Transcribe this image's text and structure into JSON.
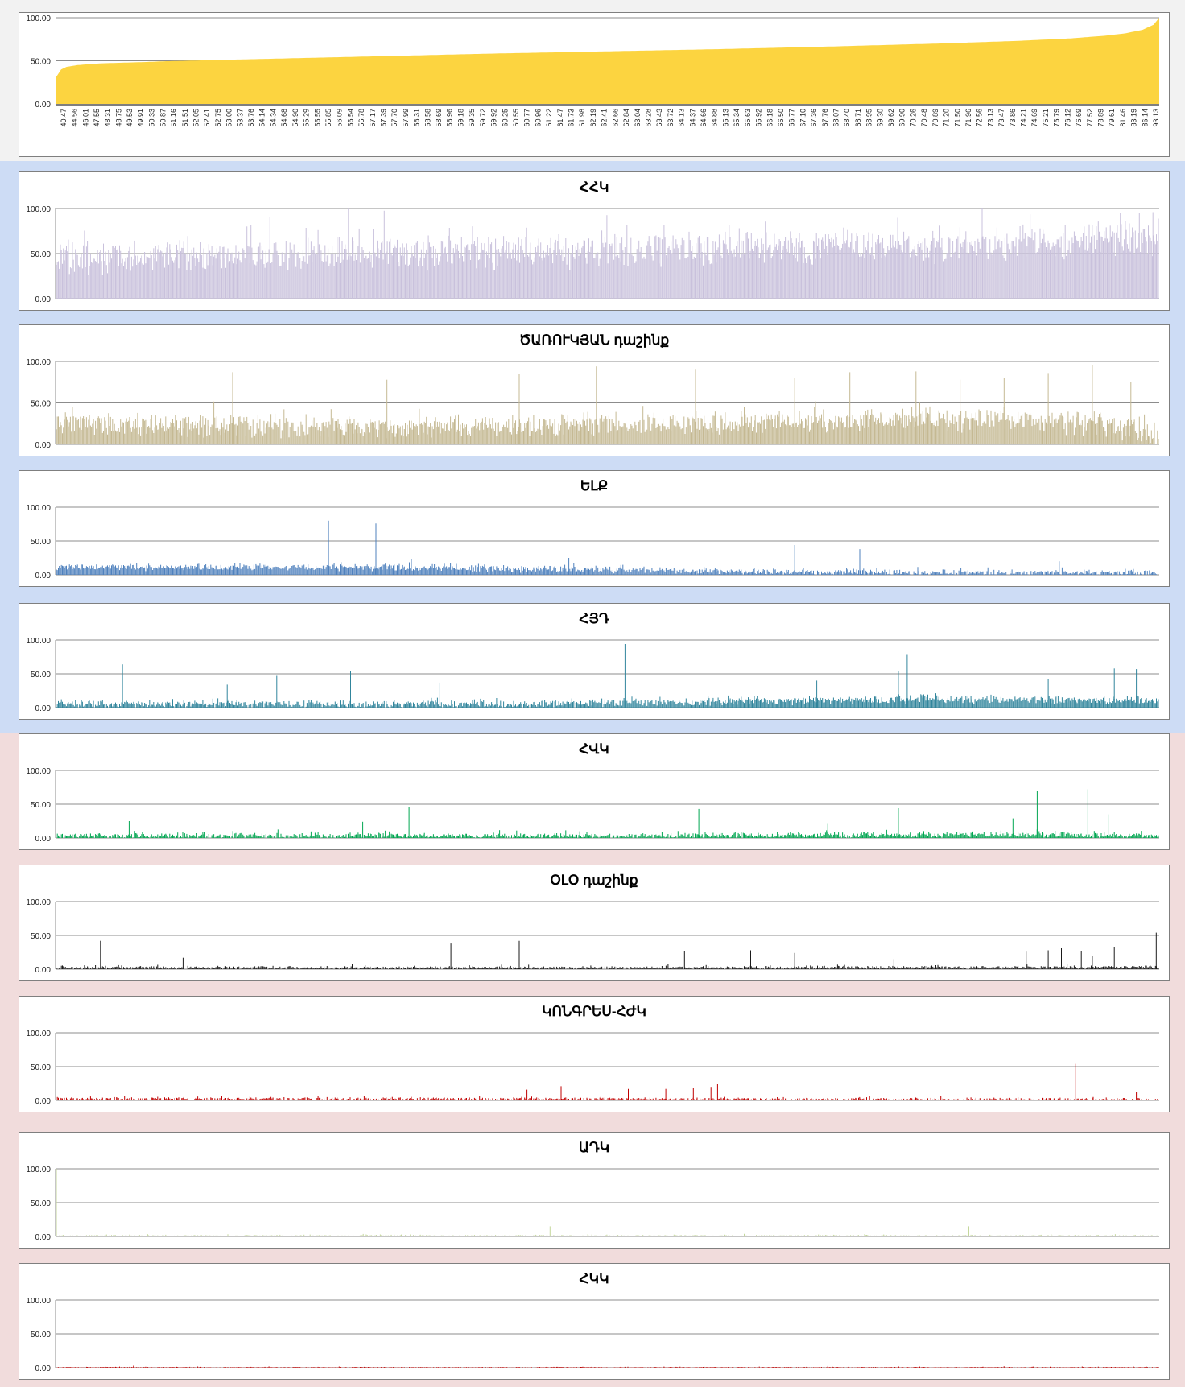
{
  "layout_note_removed": true,
  "chart_data": [
    {
      "id": "overview",
      "type": "area",
      "title": "",
      "ylim": [
        0,
        100
      ],
      "yticks": [
        "0.00",
        "50.00",
        "100.00"
      ],
      "color": "#fcd440",
      "x_tick_labels": [
        "40.47",
        "44.56",
        "46.01",
        "47.55",
        "48.31",
        "48.75",
        "49.53",
        "49.91",
        "50.33",
        "50.87",
        "51.16",
        "51.51",
        "52.05",
        "52.41",
        "52.75",
        "53.00",
        "53.37",
        "53.76",
        "54.14",
        "54.34",
        "54.68",
        "54.90",
        "55.29",
        "55.55",
        "55.85",
        "56.09",
        "56.54",
        "56.78",
        "57.17",
        "57.39",
        "57.70",
        "57.99",
        "58.31",
        "58.58",
        "58.69",
        "58.96",
        "59.18",
        "59.35",
        "59.72",
        "59.92",
        "60.25",
        "60.55",
        "60.77",
        "60.96",
        "61.22",
        "61.47",
        "61.73",
        "61.98",
        "62.19",
        "62.41",
        "62.66",
        "62.84",
        "63.04",
        "63.28",
        "63.43",
        "63.72",
        "64.13",
        "64.37",
        "64.66",
        "64.88",
        "65.13",
        "65.34",
        "65.63",
        "65.92",
        "66.18",
        "66.50",
        "66.77",
        "67.10",
        "67.36",
        "67.76",
        "68.07",
        "68.40",
        "68.71",
        "68.95",
        "69.30",
        "69.62",
        "69.90",
        "70.26",
        "70.48",
        "70.89",
        "71.20",
        "71.50",
        "71.96",
        "72.56",
        "73.13",
        "73.47",
        "73.86",
        "74.21",
        "74.69",
        "75.21",
        "75.79",
        "76.12",
        "76.69",
        "77.52",
        "78.89",
        "79.61",
        "81.46",
        "83.19",
        "86.14",
        "93.13"
      ],
      "curve": [
        [
          0,
          30
        ],
        [
          0.005,
          40
        ],
        [
          0.01,
          43
        ],
        [
          0.02,
          45
        ],
        [
          0.04,
          47
        ],
        [
          0.08,
          48.5
        ],
        [
          0.1,
          49.5
        ],
        [
          0.2,
          52.5
        ],
        [
          0.3,
          55.5
        ],
        [
          0.4,
          58.5
        ],
        [
          0.5,
          61
        ],
        [
          0.6,
          63.5
        ],
        [
          0.7,
          66.5
        ],
        [
          0.8,
          70
        ],
        [
          0.87,
          73
        ],
        [
          0.92,
          76
        ],
        [
          0.95,
          79
        ],
        [
          0.97,
          82
        ],
        [
          0.985,
          86
        ],
        [
          0.995,
          92
        ],
        [
          1,
          100
        ]
      ]
    },
    {
      "id": "hhk",
      "type": "bar",
      "title": "ՀՀԿ",
      "ylim": [
        0,
        100
      ],
      "yticks": [
        "0.00",
        "50.00",
        "100.00"
      ],
      "color": "#c9c1dc",
      "bars": 1100,
      "base": [
        [
          0,
          45
        ],
        [
          0.3,
          50
        ],
        [
          0.6,
          55
        ],
        [
          0.85,
          60
        ],
        [
          1,
          68
        ]
      ],
      "spread": 22,
      "spikes": [
        [
          0.265,
          100
        ],
        [
          0.84,
          100
        ],
        [
          0.995,
          96
        ]
      ]
    },
    {
      "id": "tsarukyan",
      "type": "bar",
      "title": "ԾԱՌՈՒԿՅԱՆ դաշինք",
      "ylim": [
        0,
        100
      ],
      "yticks": [
        "0.00",
        "50.00",
        "100.00"
      ],
      "color": "#c5b993",
      "bars": 1100,
      "base": [
        [
          0,
          25
        ],
        [
          0.3,
          20
        ],
        [
          0.55,
          25
        ],
        [
          0.8,
          30
        ],
        [
          0.95,
          25
        ],
        [
          1,
          10
        ]
      ],
      "spread": 16,
      "spikes": [
        [
          0.16,
          87
        ],
        [
          0.3,
          78
        ],
        [
          0.389,
          93
        ],
        [
          0.42,
          85
        ],
        [
          0.49,
          94
        ],
        [
          0.58,
          90
        ],
        [
          0.67,
          80
        ],
        [
          0.72,
          87
        ],
        [
          0.78,
          88
        ],
        [
          0.82,
          78
        ],
        [
          0.86,
          80
        ],
        [
          0.9,
          86
        ],
        [
          0.94,
          96
        ],
        [
          0.975,
          75
        ]
      ]
    },
    {
      "id": "elk",
      "type": "bar",
      "title": "ԵԼՔ",
      "ylim": [
        0,
        100
      ],
      "yticks": [
        "0.00",
        "50.00",
        "100.00"
      ],
      "color": "#4f81bd",
      "bars": 1100,
      "base": [
        [
          0,
          11
        ],
        [
          0.3,
          11
        ],
        [
          0.5,
          7
        ],
        [
          0.7,
          4
        ],
        [
          1,
          2
        ]
      ],
      "spread": 6,
      "spikes": [
        [
          0.247,
          80
        ],
        [
          0.29,
          76
        ],
        [
          0.465,
          25
        ],
        [
          0.67,
          44
        ],
        [
          0.729,
          38
        ],
        [
          0.91,
          20
        ]
      ]
    },
    {
      "id": "hyd",
      "type": "bar",
      "title": "ՀՅԴ",
      "ylim": [
        0,
        100
      ],
      "yticks": [
        "0.00",
        "50.00",
        "100.00"
      ],
      "color": "#31859c",
      "bars": 1100,
      "base": [
        [
          0,
          5
        ],
        [
          0.4,
          5
        ],
        [
          0.6,
          9
        ],
        [
          0.8,
          12
        ],
        [
          1,
          10
        ]
      ],
      "spread": 7,
      "spikes": [
        [
          0.06,
          64
        ],
        [
          0.155,
          34
        ],
        [
          0.2,
          47
        ],
        [
          0.267,
          54
        ],
        [
          0.348,
          37
        ],
        [
          0.516,
          94
        ],
        [
          0.772,
          78
        ],
        [
          0.764,
          54
        ],
        [
          0.96,
          58
        ],
        [
          0.98,
          57
        ],
        [
          0.69,
          40
        ],
        [
          0.9,
          42
        ]
      ]
    },
    {
      "id": "hvk",
      "type": "bar",
      "title": "ՀՎԿ",
      "ylim": [
        0,
        100
      ],
      "yticks": [
        "0.00",
        "50.00",
        "100.00"
      ],
      "color": "#00a651",
      "bars": 1100,
      "base": [
        [
          0,
          3
        ],
        [
          0.5,
          3
        ],
        [
          0.7,
          4
        ],
        [
          0.9,
          5
        ],
        [
          1,
          3
        ]
      ],
      "spread": 5,
      "spikes": [
        [
          0.066,
          25
        ],
        [
          0.278,
          24
        ],
        [
          0.32,
          46
        ],
        [
          0.583,
          43
        ],
        [
          0.764,
          44
        ],
        [
          0.868,
          29
        ],
        [
          0.89,
          69
        ],
        [
          0.936,
          72
        ],
        [
          0.955,
          35
        ],
        [
          0.7,
          22
        ]
      ]
    },
    {
      "id": "oyo",
      "type": "bar",
      "title": "ՕԼՕ դաշինք",
      "ylim": [
        0,
        100
      ],
      "yticks": [
        "0.00",
        "50.00",
        "100.00"
      ],
      "color": "#1a1a1a",
      "bars": 1100,
      "base": [
        [
          0,
          2
        ],
        [
          0.5,
          2
        ],
        [
          1,
          3
        ]
      ],
      "spread": 3,
      "spikes": [
        [
          0.04,
          42
        ],
        [
          0.115,
          17
        ],
        [
          0.358,
          38
        ],
        [
          0.42,
          42
        ],
        [
          0.57,
          27
        ],
        [
          0.63,
          28
        ],
        [
          0.67,
          24
        ],
        [
          0.76,
          15
        ],
        [
          0.88,
          26
        ],
        [
          0.9,
          28
        ],
        [
          0.912,
          31
        ],
        [
          0.93,
          27
        ],
        [
          0.94,
          20
        ],
        [
          0.96,
          33
        ],
        [
          0.998,
          54
        ]
      ]
    },
    {
      "id": "kongres",
      "type": "bar",
      "title": "ԿՈՆԳՐԵՍ-ՀԺԿ",
      "ylim": [
        0,
        100
      ],
      "yticks": [
        "0.00",
        "50.00",
        "100.00"
      ],
      "color": "#c00000",
      "bars": 1100,
      "base": [
        [
          0,
          2
        ],
        [
          0.3,
          2
        ],
        [
          1,
          1
        ]
      ],
      "spread": 3,
      "spikes": [
        [
          0.427,
          16
        ],
        [
          0.458,
          21
        ],
        [
          0.519,
          17
        ],
        [
          0.553,
          17
        ],
        [
          0.578,
          19
        ],
        [
          0.594,
          20
        ],
        [
          0.6,
          24
        ],
        [
          0.925,
          54
        ],
        [
          0.98,
          12
        ]
      ]
    },
    {
      "id": "adk",
      "type": "bar",
      "title": "ԱԴԿ",
      "ylim": [
        0,
        100
      ],
      "yticks": [
        "0.00",
        "50.00",
        "100.00"
      ],
      "color": "#c4d79b",
      "bars": 1100,
      "base": [
        [
          0,
          1
        ],
        [
          1,
          1
        ]
      ],
      "spread": 1.5,
      "spikes": [
        [
          0.0,
          100
        ],
        [
          0.448,
          15
        ],
        [
          0.828,
          15
        ]
      ]
    },
    {
      "id": "hkk",
      "type": "bar",
      "title": "ՀԿԿ",
      "ylim": [
        0,
        100
      ],
      "yticks": [
        "0.00",
        "50.00",
        "100.00"
      ],
      "color": "#c00000",
      "bars": 1100,
      "base": [
        [
          0,
          0.6
        ],
        [
          1,
          0.5
        ]
      ],
      "spread": 0.8,
      "spikes": [
        [
          0.07,
          3
        ],
        [
          0.7,
          2.5
        ]
      ]
    }
  ]
}
